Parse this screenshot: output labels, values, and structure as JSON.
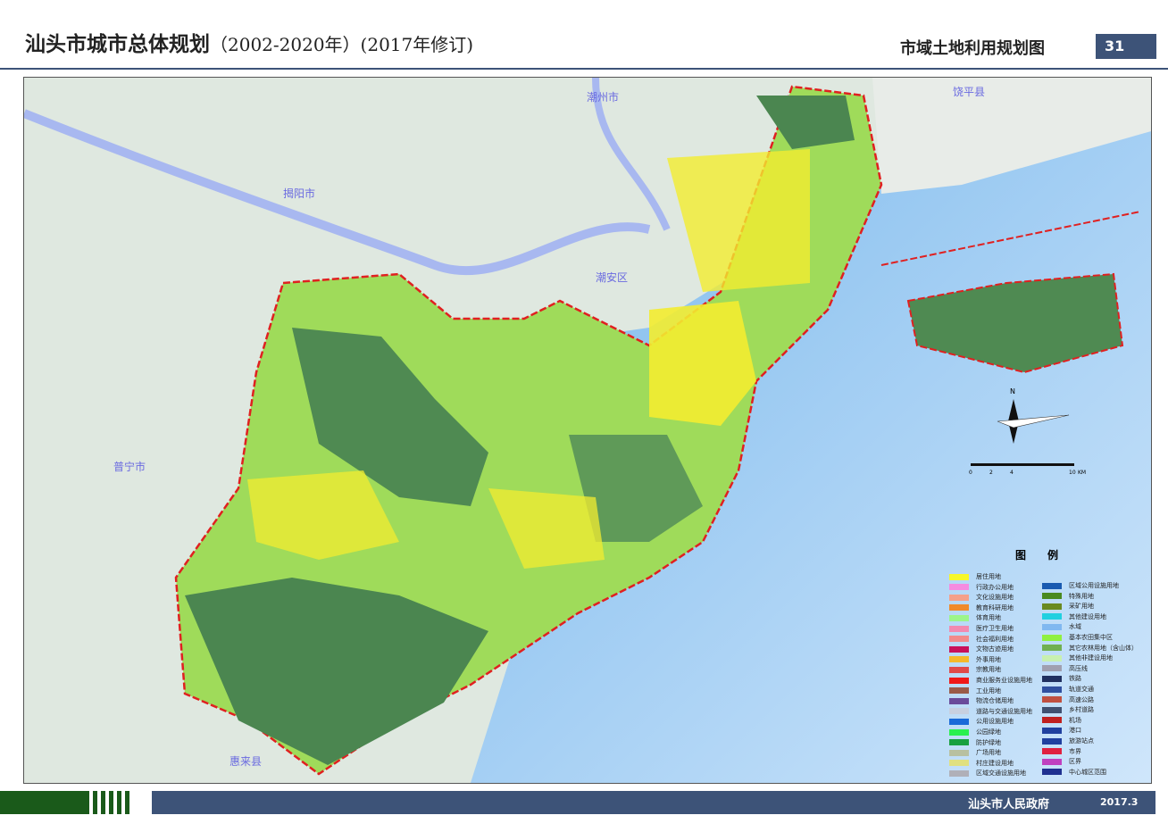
{
  "header": {
    "title": "汕头市城市总体规划",
    "subtitle": "（2002-2020年）(2017年修订)",
    "map_name": "市域土地利用规划图",
    "page_number": "31"
  },
  "footer": {
    "organization": "汕头市人民政府",
    "date": "2017.3"
  },
  "map": {
    "labels": {
      "raoping": "饶平县",
      "chaozhou": "潮州市",
      "jieyang": "揭阳市",
      "chaoan": "潮安区",
      "puning": "普宁市",
      "huilai": "惠来县"
    },
    "compass": "N",
    "scale": {
      "ticks": [
        "0",
        "2",
        "4",
        "10"
      ],
      "unit": "KM"
    },
    "colors": {
      "sea": "#5aa6e6",
      "boundary": "#e02020",
      "forest": "#3f7a45",
      "farmland": "#a6e85a",
      "residential": "#f5f020"
    }
  },
  "legend": {
    "title": "图　　例",
    "left": [
      {
        "label": "居住用地",
        "color": "#f7f72a"
      },
      {
        "label": "行政办公用地",
        "color": "#f58be0"
      },
      {
        "label": "文化设施用地",
        "color": "#f5a08a"
      },
      {
        "label": "教育科研用地",
        "color": "#f08a2a"
      },
      {
        "label": "体育用地",
        "color": "#9cf58a"
      },
      {
        "label": "医疗卫生用地",
        "color": "#f28ab0"
      },
      {
        "label": "社会福利用地",
        "color": "#f28a8a"
      },
      {
        "label": "文物古迹用地",
        "color": "#c8105a"
      },
      {
        "label": "外事用地",
        "color": "#f5b82a"
      },
      {
        "label": "宗教用地",
        "color": "#e04a4a"
      },
      {
        "label": "商业服务业设施用地",
        "color": "#f01818"
      },
      {
        "label": "工业用地",
        "color": "#9a5a48"
      },
      {
        "label": "物流仓储用地",
        "color": "#6a4a9a"
      },
      {
        "label": "道路与交通设施用地",
        "color": "#c8d0e0"
      },
      {
        "label": "公用设施用地",
        "color": "#1a6ad8"
      },
      {
        "label": "公园绿地",
        "color": "#2af050"
      },
      {
        "label": "防护绿地",
        "color": "#18a040"
      },
      {
        "label": "广场用地",
        "color": "#b8c0a0"
      },
      {
        "label": "村庄建设用地",
        "color": "#e0e080"
      },
      {
        "label": "区域交通设施用地",
        "color": "#b0b0b8"
      }
    ],
    "right": [
      {
        "label": "区域公用设施用地",
        "color": "#1a5ab0"
      },
      {
        "label": "特殊用地",
        "color": "#4a8a20"
      },
      {
        "label": "采矿用地",
        "color": "#6a8a20"
      },
      {
        "label": "其他建设用地",
        "color": "#20d0e0"
      },
      {
        "label": "水域",
        "color": "#80b8f0"
      },
      {
        "label": "基本农田集中区",
        "color": "#90f040"
      },
      {
        "label": "其它农林用地（含山体）",
        "color": "#70b050"
      },
      {
        "label": "其他非建设用地",
        "color": "#c8f0b0"
      },
      {
        "label": "高压线",
        "color": "#a0a0b0"
      },
      {
        "label": "铁路",
        "color": "#203060"
      },
      {
        "label": "轨道交通",
        "color": "#3050a0"
      },
      {
        "label": "高速公路",
        "color": "#c05040"
      },
      {
        "label": "乡村道路",
        "color": "#405070"
      },
      {
        "label": "机场",
        "color": "#c02020"
      },
      {
        "label": "港口",
        "color": "#2040a0"
      },
      {
        "label": "旅游站点",
        "color": "#2040a0"
      },
      {
        "label": "市界",
        "color": "#e02040"
      },
      {
        "label": "区界",
        "color": "#c040c0"
      },
      {
        "label": "中心城区范围",
        "color": "#203090"
      }
    ]
  }
}
